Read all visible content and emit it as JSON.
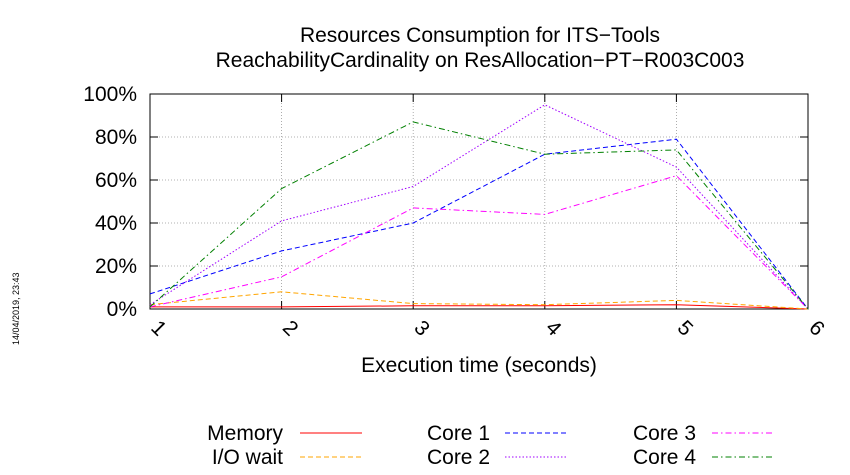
{
  "chart_data": {
    "type": "line",
    "title": "Resources Consumption for ITS−Tools",
    "subtitle": "ReachabilityCardinality on ResAllocation−PT−R003C003",
    "xlabel": "Execution time (seconds)",
    "ylabel": "",
    "timestamp": "14/04/2019, 23:43",
    "x": [
      1,
      2,
      3,
      4,
      5,
      6
    ],
    "x_tick_labels": [
      "1",
      "2",
      "3",
      "4",
      "5",
      "6"
    ],
    "xlim": [
      1,
      6
    ],
    "ylim": [
      0,
      100
    ],
    "y_ticks": [
      0,
      20,
      40,
      60,
      80,
      100
    ],
    "y_tick_labels": [
      "0%",
      "20%",
      "40%",
      "60%",
      "80%",
      "100%"
    ],
    "grid": true,
    "legend_position": "bottom",
    "series": [
      {
        "name": "Memory",
        "color": "#ff0000",
        "dash": "solid",
        "values": [
          1,
          1,
          1.5,
          1.5,
          2,
          0
        ]
      },
      {
        "name": "I/O wait",
        "color": "#ffa500",
        "dash": "dashed",
        "values": [
          2,
          8,
          2.5,
          2,
          4,
          0
        ]
      },
      {
        "name": "Core 1",
        "color": "#0000ff",
        "dash": "dashed",
        "values": [
          7,
          27,
          40,
          72,
          79,
          0
        ]
      },
      {
        "name": "Core 2",
        "color": "#a000ff",
        "dash": "dotted",
        "values": [
          2,
          41,
          57,
          95,
          66,
          0
        ]
      },
      {
        "name": "Core 3",
        "color": "#ff00ff",
        "dash": "dashdot",
        "values": [
          1,
          15,
          47,
          44,
          62,
          0
        ]
      },
      {
        "name": "Core 4",
        "color": "#008000",
        "dash": "dashdot",
        "values": [
          1,
          56,
          87,
          72,
          74,
          0
        ]
      }
    ]
  }
}
